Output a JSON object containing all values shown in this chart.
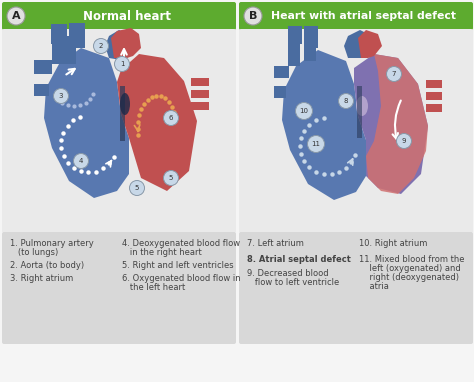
{
  "bg_color": "#f5f5f5",
  "header_green": "#5dab2f",
  "header_text_color": "#ffffff",
  "label_circle_bg": "#e0e0e0",
  "label_circle_border": "#999999",
  "label_A": "A",
  "label_B": "B",
  "title_left": "Normal heart",
  "title_right": "Heart with atrial septal defect",
  "panel_bg": "#eaeaea",
  "legend_bg": "#d8d8d8",
  "legend_text_color": "#444444",
  "blue_dark": "#4a6ca0",
  "blue_mid": "#5878b0",
  "blue_light": "#7090c0",
  "red_dark": "#b84040",
  "red_mid": "#c05050",
  "red_light": "#d07070",
  "pink": "#e8b0b0",
  "purple": "#7060a8",
  "separator_color": "#cccccc",
  "circle_number_bg": "#c8d8e8",
  "circle_number_border": "#8898a8",
  "dot_white": "#ffffff",
  "dot_orange": "#e8a050",
  "dot_blue": "#7090c8"
}
